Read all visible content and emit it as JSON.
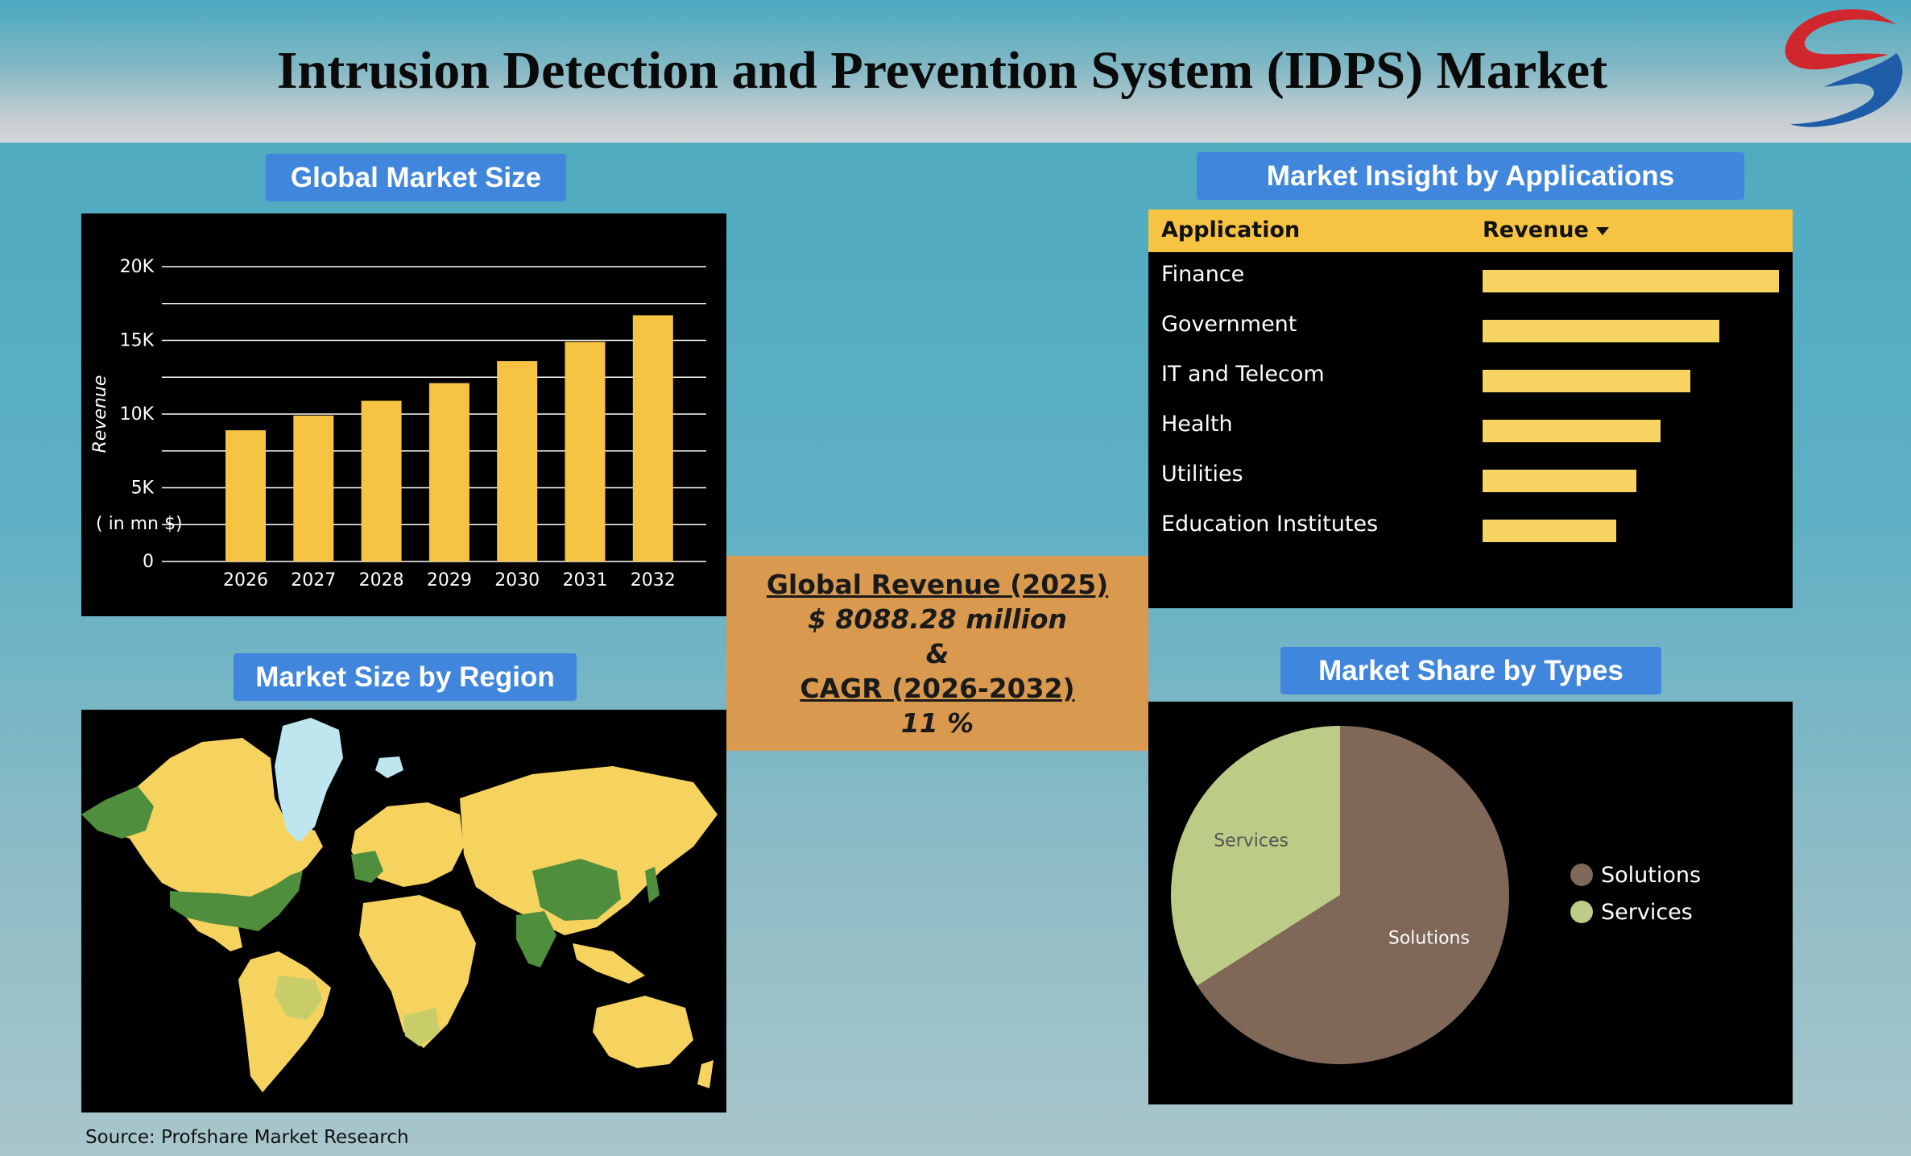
{
  "header": {
    "title": "Intrusion Detection and Prevention System (IDPS) Market",
    "logo_name": "company-logo-icon"
  },
  "sections": {
    "global_market_size": "Global Market Size",
    "market_size_by_region": "Market Size by Region",
    "market_insight_by_applications": "Market Insight by Applications",
    "market_share_by_types": "Market Share by Types"
  },
  "center": {
    "revenue_label": "Global Revenue (2025)",
    "revenue_value": "$ 8088.28 million",
    "amp": "&",
    "cagr_label": "CAGR (2026-2032)",
    "cagr_value": "11 %"
  },
  "app_table": {
    "col_application": "Application",
    "col_revenue": "Revenue",
    "sort_icon": "sort-desc-icon"
  },
  "footer": {
    "source": "Source: Profshare Market Research"
  },
  "colors": {
    "bar": "#f6c343",
    "pill": "#3f86dc",
    "solutions": "#806858",
    "services": "#bccb86",
    "map_land": "#f6d35f",
    "map_highlight": "#4e8e3d",
    "greenland": "#bde6ef"
  },
  "chart_data": [
    {
      "type": "bar",
      "title": "Global Market Size",
      "categories": [
        "2026",
        "2027",
        "2028",
        "2029",
        "2030",
        "2031",
        "2032"
      ],
      "values": [
        8900,
        9900,
        10900,
        12100,
        13600,
        14900,
        16700
      ],
      "ylabel": "Revenue",
      "unit_note": "( in mn $)",
      "ylim": [
        0,
        20000
      ],
      "yticks": [
        "0",
        "5K",
        "10K",
        "15K",
        "20K"
      ],
      "grid": true
    },
    {
      "type": "bar",
      "orientation": "horizontal",
      "title": "Market Insight by Applications",
      "categories": [
        "Finance",
        "Government",
        "IT and Telecom",
        "Health",
        "Utilities",
        "Education Institutes"
      ],
      "values": [
        1.0,
        0.8,
        0.7,
        0.6,
        0.52,
        0.45
      ]
    },
    {
      "type": "pie",
      "title": "Market Share by Types",
      "labels": [
        "Solutions",
        "Services"
      ],
      "values": [
        66,
        34
      ],
      "legend": "right"
    }
  ]
}
